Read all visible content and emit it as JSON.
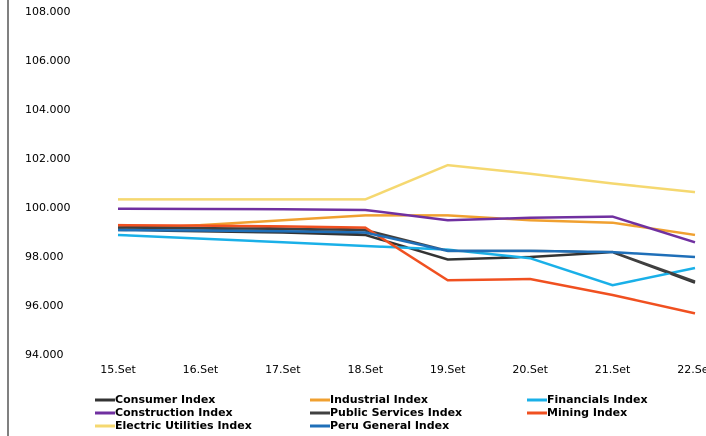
{
  "chart_data": {
    "type": "line",
    "categories": [
      "15.Set",
      "16.Set",
      "17.Set",
      "18.Set",
      "19.Set",
      "20.Set",
      "21.Set",
      "22.Set"
    ],
    "series": [
      {
        "name": "Consumer Index",
        "color": "#333333",
        "values": [
          99.1,
          99.05,
          99.0,
          98.9,
          97.9,
          98.0,
          98.2,
          96.95
        ]
      },
      {
        "name": "Industrial Index",
        "color": "#f0a030",
        "values": [
          99.2,
          99.3,
          99.5,
          99.7,
          99.7,
          99.5,
          99.4,
          98.9
        ]
      },
      {
        "name": "Financials Index",
        "color": "#1ab0e8",
        "values": [
          98.9,
          98.75,
          98.6,
          98.45,
          98.3,
          97.95,
          96.85,
          97.55
        ]
      },
      {
        "name": "Construction Index",
        "color": "#7030a0",
        "values": [
          99.97,
          99.96,
          99.95,
          99.92,
          99.5,
          99.6,
          99.65,
          98.6
        ]
      },
      {
        "name": "Public Services Index",
        "color": "#404040",
        "values": [
          99.2,
          99.18,
          99.15,
          99.1,
          98.25,
          98.25,
          98.2,
          97.0
        ]
      },
      {
        "name": "Mining Index",
        "color": "#f05020",
        "values": [
          99.3,
          99.28,
          99.25,
          99.2,
          97.05,
          97.1,
          96.45,
          95.7
        ]
      },
      {
        "name": "Electric Utilities Index",
        "color": "#f5d870",
        "values": [
          100.35,
          100.35,
          100.35,
          100.35,
          101.75,
          101.4,
          101.0,
          100.65
        ]
      },
      {
        "name": "Peru General Index",
        "color": "#1f6fb8",
        "values": [
          99.1,
          99.08,
          99.05,
          99.0,
          98.25,
          98.25,
          98.2,
          98.0
        ]
      }
    ],
    "ylim": [
      94,
      108
    ],
    "yticks": [
      {
        "value": 94,
        "label": "94.000"
      },
      {
        "value": 96,
        "label": "96.000"
      },
      {
        "value": 98,
        "label": "98.000"
      },
      {
        "value": 100,
        "label": "100.000"
      },
      {
        "value": 102,
        "label": "102.000"
      },
      {
        "value": 104,
        "label": "104.000"
      },
      {
        "value": 106,
        "label": "106.000"
      },
      {
        "value": 108,
        "label": "108.000"
      }
    ],
    "grid": false,
    "legend": "bottom"
  }
}
